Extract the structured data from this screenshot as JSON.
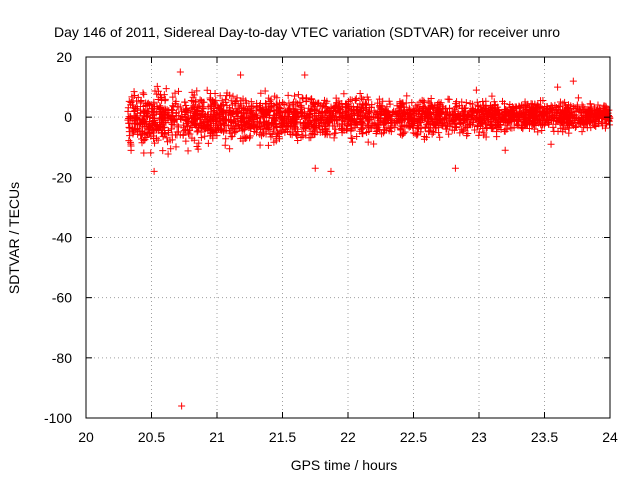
{
  "chart_data": {
    "type": "scatter",
    "title": "Day 146 of 2011, Sidereal Day-to-day VTEC variation (SDTVAR) for receiver unro",
    "xlabel": "GPS time / hours",
    "ylabel": "SDTVAR / TECUs",
    "xlim": [
      20,
      24
    ],
    "ylim": [
      -100,
      20
    ],
    "xticks": [
      "20",
      "20.5",
      "21",
      "21.5",
      "22",
      "22.5",
      "23",
      "23.5",
      "24"
    ],
    "yticks": [
      "20",
      "0",
      "-20",
      "-40",
      "-60",
      "-80",
      "-100"
    ],
    "grid": true,
    "marker": "+",
    "point_color": "#ff0000",
    "series": [
      {
        "name": "SDTVAR",
        "description": "Dense cloud of points from ~20.32 h to 24 h; spread about +/-12 TECU until ~22.3 h, narrowing to about +/-6 TECU toward 24 h",
        "x_range": [
          20.32,
          24.0
        ],
        "outliers": [
          {
            "x": 20.73,
            "y": -96
          },
          {
            "x": 20.72,
            "y": 15
          },
          {
            "x": 21.18,
            "y": 14
          },
          {
            "x": 21.67,
            "y": 14
          },
          {
            "x": 20.52,
            "y": -18
          },
          {
            "x": 21.87,
            "y": -18
          },
          {
            "x": 21.75,
            "y": -17
          },
          {
            "x": 22.82,
            "y": -17
          },
          {
            "x": 23.2,
            "y": -11
          },
          {
            "x": 23.55,
            "y": -9
          },
          {
            "x": 23.72,
            "y": 12
          },
          {
            "x": 23.6,
            "y": 10
          },
          {
            "x": 22.98,
            "y": 9
          }
        ]
      }
    ]
  }
}
